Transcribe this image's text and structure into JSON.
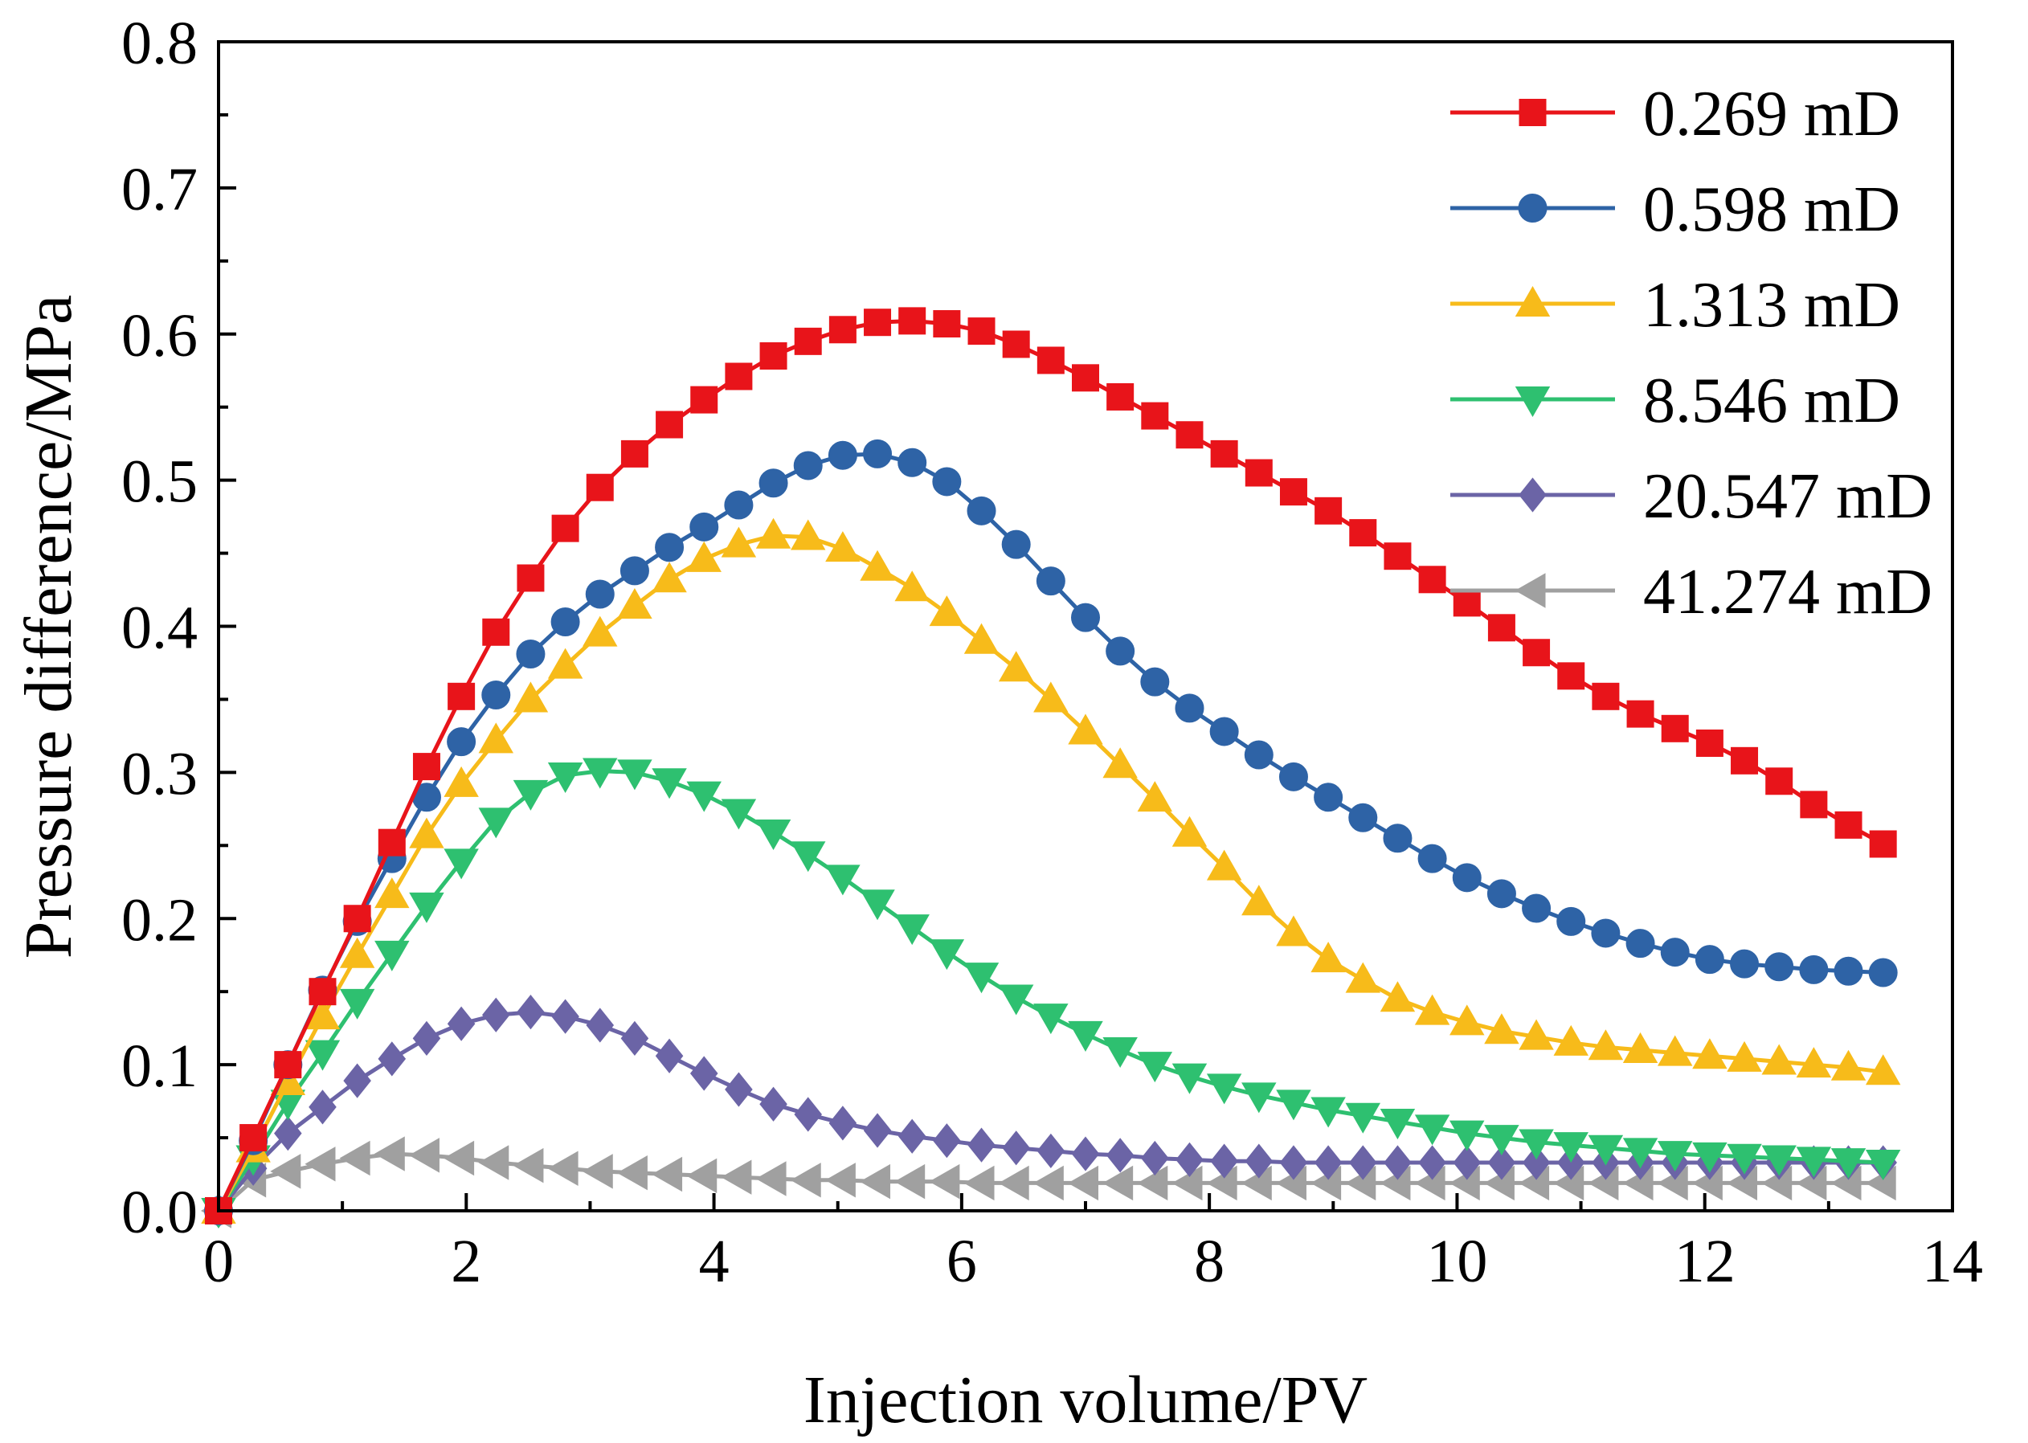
{
  "chart_data": {
    "type": "line",
    "title": "",
    "xlabel": "Injection volume/PV",
    "ylabel": "Pressure difference/MPa",
    "xlim": [
      0,
      14
    ],
    "ylim": [
      0,
      0.8
    ],
    "xticks": [
      0,
      2,
      4,
      6,
      8,
      10,
      12,
      14
    ],
    "xtick_labels": [
      "0",
      "2",
      "4",
      "6",
      "8",
      "10",
      "12",
      "14"
    ],
    "yticks": [
      0,
      0.1,
      0.2,
      0.3,
      0.4,
      0.5,
      0.6,
      0.7,
      0.8
    ],
    "ytick_labels": [
      "0.0",
      "0.1",
      "0.2",
      "0.3",
      "0.4",
      "0.5",
      "0.6",
      "0.7",
      "0.8"
    ],
    "legend_position": "top-right",
    "grid": false,
    "x": [
      0,
      0.28,
      0.56,
      0.84,
      1.12,
      1.4,
      1.68,
      1.96,
      2.24,
      2.52,
      2.8,
      3.08,
      3.36,
      3.64,
      3.92,
      4.2,
      4.48,
      4.76,
      5.04,
      5.32,
      5.6,
      5.88,
      6.16,
      6.44,
      6.72,
      7.0,
      7.28,
      7.56,
      7.84,
      8.12,
      8.4,
      8.68,
      8.96,
      9.24,
      9.52,
      9.8,
      10.08,
      10.36,
      10.64,
      10.92,
      11.2,
      11.48,
      11.76,
      12.04,
      12.32,
      12.6,
      12.88,
      13.16,
      13.44
    ],
    "series": [
      {
        "name": "0.269 mD",
        "color": "#e8141a",
        "marker": "square",
        "values": [
          0,
          0.05,
          0.1,
          0.15,
          0.2,
          0.252,
          0.304,
          0.352,
          0.396,
          0.433,
          0.467,
          0.495,
          0.518,
          0.538,
          0.555,
          0.571,
          0.585,
          0.595,
          0.603,
          0.608,
          0.609,
          0.607,
          0.602,
          0.593,
          0.582,
          0.57,
          0.557,
          0.544,
          0.531,
          0.518,
          0.505,
          0.492,
          0.479,
          0.464,
          0.448,
          0.432,
          0.416,
          0.399,
          0.382,
          0.366,
          0.352,
          0.34,
          0.33,
          0.32,
          0.308,
          0.294,
          0.278,
          0.264,
          0.251
        ]
      },
      {
        "name": "0.598 mD",
        "color": "#2e63a6",
        "marker": "circle",
        "values": [
          0,
          0.048,
          0.1,
          0.151,
          0.198,
          0.241,
          0.283,
          0.321,
          0.353,
          0.381,
          0.403,
          0.422,
          0.438,
          0.454,
          0.468,
          0.483,
          0.498,
          0.51,
          0.517,
          0.518,
          0.512,
          0.499,
          0.479,
          0.456,
          0.431,
          0.406,
          0.383,
          0.362,
          0.344,
          0.328,
          0.312,
          0.297,
          0.283,
          0.269,
          0.255,
          0.241,
          0.228,
          0.217,
          0.207,
          0.198,
          0.19,
          0.183,
          0.177,
          0.172,
          0.169,
          0.167,
          0.165,
          0.164,
          0.163
        ]
      },
      {
        "name": "1.313 mD",
        "color": "#f7bb1a",
        "marker": "triangle-up",
        "values": [
          0,
          0.042,
          0.088,
          0.133,
          0.175,
          0.216,
          0.257,
          0.292,
          0.322,
          0.35,
          0.373,
          0.395,
          0.414,
          0.432,
          0.446,
          0.456,
          0.462,
          0.461,
          0.453,
          0.44,
          0.426,
          0.409,
          0.39,
          0.371,
          0.35,
          0.328,
          0.305,
          0.282,
          0.258,
          0.235,
          0.211,
          0.19,
          0.172,
          0.158,
          0.145,
          0.136,
          0.129,
          0.123,
          0.119,
          0.115,
          0.112,
          0.11,
          0.108,
          0.106,
          0.104,
          0.102,
          0.1,
          0.098,
          0.095
        ]
      },
      {
        "name": "8.546 mD",
        "color": "#2ec070",
        "marker": "triangle-down",
        "values": [
          0,
          0.036,
          0.074,
          0.108,
          0.143,
          0.176,
          0.209,
          0.239,
          0.267,
          0.286,
          0.298,
          0.301,
          0.3,
          0.294,
          0.285,
          0.273,
          0.259,
          0.244,
          0.228,
          0.211,
          0.194,
          0.177,
          0.161,
          0.146,
          0.133,
          0.121,
          0.11,
          0.1,
          0.092,
          0.085,
          0.079,
          0.074,
          0.069,
          0.065,
          0.061,
          0.057,
          0.053,
          0.05,
          0.047,
          0.045,
          0.043,
          0.041,
          0.039,
          0.038,
          0.037,
          0.036,
          0.035,
          0.034,
          0.033
        ]
      },
      {
        "name": "20.547 mD",
        "color": "#6b64a6",
        "marker": "diamond",
        "values": [
          0,
          0.029,
          0.053,
          0.071,
          0.089,
          0.104,
          0.118,
          0.128,
          0.134,
          0.136,
          0.133,
          0.127,
          0.118,
          0.106,
          0.094,
          0.083,
          0.073,
          0.066,
          0.06,
          0.055,
          0.051,
          0.048,
          0.045,
          0.043,
          0.041,
          0.039,
          0.038,
          0.036,
          0.035,
          0.034,
          0.034,
          0.033,
          0.033,
          0.033,
          0.033,
          0.033,
          0.033,
          0.033,
          0.033,
          0.033,
          0.033,
          0.033,
          0.033,
          0.033,
          0.033,
          0.033,
          0.033,
          0.033,
          0.033
        ]
      },
      {
        "name": "41.274 mD",
        "color": "#a0a0a0",
        "marker": "triangle-left",
        "values": [
          0,
          0.021,
          0.027,
          0.032,
          0.036,
          0.039,
          0.038,
          0.036,
          0.033,
          0.031,
          0.029,
          0.027,
          0.026,
          0.025,
          0.024,
          0.023,
          0.022,
          0.021,
          0.021,
          0.02,
          0.02,
          0.02,
          0.019,
          0.019,
          0.019,
          0.019,
          0.019,
          0.019,
          0.019,
          0.019,
          0.019,
          0.019,
          0.019,
          0.019,
          0.019,
          0.019,
          0.019,
          0.019,
          0.019,
          0.019,
          0.019,
          0.019,
          0.019,
          0.019,
          0.019,
          0.019,
          0.019,
          0.019,
          0.019
        ]
      }
    ]
  }
}
